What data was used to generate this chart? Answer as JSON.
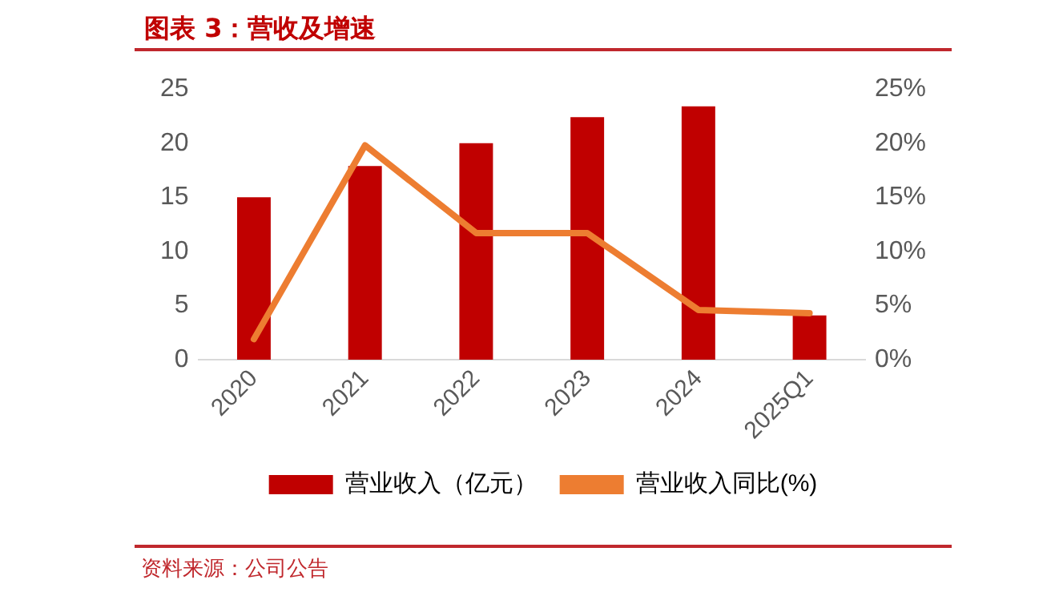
{
  "chart_data": {
    "type": "bar",
    "title": "图表 3：营收及增速",
    "categories": [
      "2020",
      "2021",
      "2022",
      "2023",
      "2024",
      "2025Q1"
    ],
    "series": [
      {
        "name": "营业收入（亿元）",
        "color": "#c00000",
        "values": [
          15.0,
          17.9,
          20.0,
          22.4,
          23.4,
          4.1
        ]
      },
      {
        "name": "营业收入同比(%)",
        "type": "line",
        "axis": "y2",
        "color": "#ed7d31",
        "values": [
          1.9,
          19.8,
          11.7,
          11.7,
          4.6,
          4.3
        ]
      }
    ],
    "ylim": [
      0,
      25
    ],
    "yticks": [
      0,
      5,
      10,
      15,
      20,
      25
    ],
    "y2lim": [
      0,
      25
    ],
    "y2ticks": [
      {
        "value": 0,
        "label": "0%"
      },
      {
        "value": 5,
        "label": "5%"
      },
      {
        "value": 10,
        "label": "10%"
      },
      {
        "value": 15,
        "label": "15%"
      },
      {
        "value": 20,
        "label": "20%"
      },
      {
        "value": 25,
        "label": "25%"
      }
    ],
    "grid": false,
    "legend": "bottom",
    "marker": "none",
    "annotations": [
      "资料来源：公司公告"
    ]
  }
}
